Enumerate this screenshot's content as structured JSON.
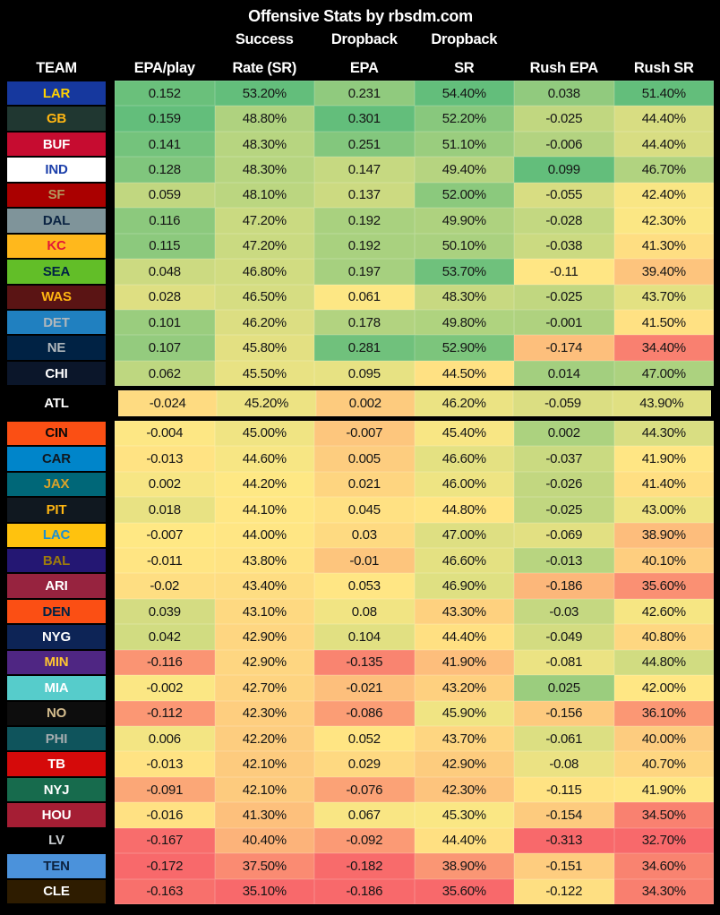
{
  "title": "Offensive Stats by rbsdm.com",
  "header": {
    "top": [
      "",
      "",
      "Success",
      "Dropback",
      "Dropback",
      "",
      ""
    ],
    "bottom": [
      "TEAM",
      "EPA/play",
      "Rate (SR)",
      "EPA",
      "SR",
      "Rush EPA",
      "Rush SR"
    ]
  },
  "color_scale": {
    "low": "#F8696B",
    "mid": "#FFE884",
    "high": "#63BE7B"
  },
  "highlighted_team": "ATL",
  "team_colors": {
    "LAR": [
      "#16389E",
      "#FFD100"
    ],
    "GB": [
      "#203731",
      "#FFB612"
    ],
    "BUF": [
      "#C60C30",
      "#FFFFFF"
    ],
    "IND": [
      "#FFFFFF",
      "#1C3FAA"
    ],
    "SF": [
      "#AA0000",
      "#B3995D"
    ],
    "DAL": [
      "#7F949A",
      "#0A2342"
    ],
    "KC": [
      "#FFB81C",
      "#E31837"
    ],
    "SEA": [
      "#62BE28",
      "#002244"
    ],
    "WAS": [
      "#5A1414",
      "#FFB612"
    ],
    "DET": [
      "#2080C0",
      "#B0B7BC"
    ],
    "NE": [
      "#002244",
      "#B0B7BC"
    ],
    "CHI": [
      "#0B162A",
      "#FFFFFF"
    ],
    "ATL": [
      "#000000",
      "#FFFFFF"
    ],
    "CIN": [
      "#FB4F14",
      "#0A0A0A"
    ],
    "CAR": [
      "#0085CA",
      "#101820"
    ],
    "JAX": [
      "#006778",
      "#D7A22A"
    ],
    "PIT": [
      "#101820",
      "#FFB612"
    ],
    "LAC": [
      "#FFC20E",
      "#1E8FD0"
    ],
    "BAL": [
      "#241773",
      "#9E7C0C"
    ],
    "ARI": [
      "#97233F",
      "#FFFFFF"
    ],
    "DEN": [
      "#FB4F14",
      "#002244"
    ],
    "NYG": [
      "#0D2456",
      "#FFFFFF"
    ],
    "MIN": [
      "#4F2683",
      "#FFC62F"
    ],
    "MIA": [
      "#56CCCB",
      "#FFFFFF"
    ],
    "NO": [
      "#0D0D0D",
      "#D3BC8D"
    ],
    "PHI": [
      "#0F545C",
      "#A5ACAF"
    ],
    "TB": [
      "#D50A0A",
      "#FFFFFF"
    ],
    "NYJ": [
      "#176B4D",
      "#FFFFFF"
    ],
    "HOU": [
      "#A51E34",
      "#FFFFFF"
    ],
    "LV": [
      "#000000",
      "#C9CDD0"
    ],
    "TEN": [
      "#4B92DB",
      "#0C2340"
    ],
    "CLE": [
      "#2E1C00",
      "#FFFFFF"
    ]
  },
  "chart_data": {
    "type": "table",
    "title": "Offensive Stats by rbsdm.com",
    "columns": [
      "TEAM",
      "EPA/play",
      "Success Rate (SR)",
      "Dropback EPA",
      "Dropback SR",
      "Rush EPA",
      "Rush SR"
    ],
    "color_scale": "per-column red-yellow-green heatmap (min=red, mid=yellow, max=green)",
    "highlighted_row": "ATL",
    "rows": [
      [
        "LAR",
        0.152,
        "53.20%",
        0.231,
        "54.40%",
        0.038,
        "51.40%"
      ],
      [
        "GB",
        0.159,
        "48.80%",
        0.301,
        "52.20%",
        -0.025,
        "44.40%"
      ],
      [
        "BUF",
        0.141,
        "48.30%",
        0.251,
        "51.10%",
        -0.006,
        "44.40%"
      ],
      [
        "IND",
        0.128,
        "48.30%",
        0.147,
        "49.40%",
        0.099,
        "46.70%"
      ],
      [
        "SF",
        0.059,
        "48.10%",
        0.137,
        "52.00%",
        -0.055,
        "42.40%"
      ],
      [
        "DAL",
        0.116,
        "47.20%",
        0.192,
        "49.90%",
        -0.028,
        "42.30%"
      ],
      [
        "KC",
        0.115,
        "47.20%",
        0.192,
        "50.10%",
        -0.038,
        "41.30%"
      ],
      [
        "SEA",
        0.048,
        "46.80%",
        0.197,
        "53.70%",
        -0.11,
        "39.40%"
      ],
      [
        "WAS",
        0.028,
        "46.50%",
        0.061,
        "48.30%",
        -0.025,
        "43.70%"
      ],
      [
        "DET",
        0.101,
        "46.20%",
        0.178,
        "49.80%",
        -0.001,
        "41.50%"
      ],
      [
        "NE",
        0.107,
        "45.80%",
        0.281,
        "52.90%",
        -0.174,
        "34.40%"
      ],
      [
        "CHI",
        0.062,
        "45.50%",
        0.095,
        "44.50%",
        0.014,
        "47.00%"
      ],
      [
        "ATL",
        -0.024,
        "45.20%",
        0.002,
        "46.20%",
        -0.059,
        "43.90%"
      ],
      [
        "CIN",
        -0.004,
        "45.00%",
        -0.007,
        "45.40%",
        0.002,
        "44.30%"
      ],
      [
        "CAR",
        -0.013,
        "44.60%",
        0.005,
        "46.60%",
        -0.037,
        "41.90%"
      ],
      [
        "JAX",
        0.002,
        "44.20%",
        0.021,
        "46.00%",
        -0.026,
        "41.40%"
      ],
      [
        "PIT",
        0.018,
        "44.10%",
        0.045,
        "44.80%",
        -0.025,
        "43.00%"
      ],
      [
        "LAC",
        -0.007,
        "44.00%",
        0.03,
        "47.00%",
        -0.069,
        "38.90%"
      ],
      [
        "BAL",
        -0.011,
        "43.80%",
        -0.01,
        "46.60%",
        -0.013,
        "40.10%"
      ],
      [
        "ARI",
        -0.02,
        "43.40%",
        0.053,
        "46.90%",
        -0.186,
        "35.60%"
      ],
      [
        "DEN",
        0.039,
        "43.10%",
        0.08,
        "43.30%",
        -0.03,
        "42.60%"
      ],
      [
        "NYG",
        0.042,
        "42.90%",
        0.104,
        "44.40%",
        -0.049,
        "40.80%"
      ],
      [
        "MIN",
        -0.116,
        "42.90%",
        -0.135,
        "41.90%",
        -0.081,
        "44.80%"
      ],
      [
        "MIA",
        -0.002,
        "42.70%",
        -0.021,
        "43.20%",
        0.025,
        "42.00%"
      ],
      [
        "NO",
        -0.112,
        "42.30%",
        -0.086,
        "45.90%",
        -0.156,
        "36.10%"
      ],
      [
        "PHI",
        0.006,
        "42.20%",
        0.052,
        "43.70%",
        -0.061,
        "40.00%"
      ],
      [
        "TB",
        -0.013,
        "42.10%",
        0.029,
        "42.90%",
        -0.08,
        "40.70%"
      ],
      [
        "NYJ",
        -0.091,
        "42.10%",
        -0.076,
        "42.30%",
        -0.115,
        "41.90%"
      ],
      [
        "HOU",
        -0.016,
        "41.30%",
        0.067,
        "45.30%",
        -0.154,
        "34.50%"
      ],
      [
        "LV",
        -0.167,
        "40.40%",
        -0.092,
        "44.40%",
        -0.313,
        "32.70%"
      ],
      [
        "TEN",
        -0.172,
        "37.50%",
        -0.182,
        "38.90%",
        -0.151,
        "34.60%"
      ],
      [
        "CLE",
        -0.163,
        "35.10%",
        -0.186,
        "35.60%",
        -0.122,
        "34.30%"
      ]
    ]
  }
}
